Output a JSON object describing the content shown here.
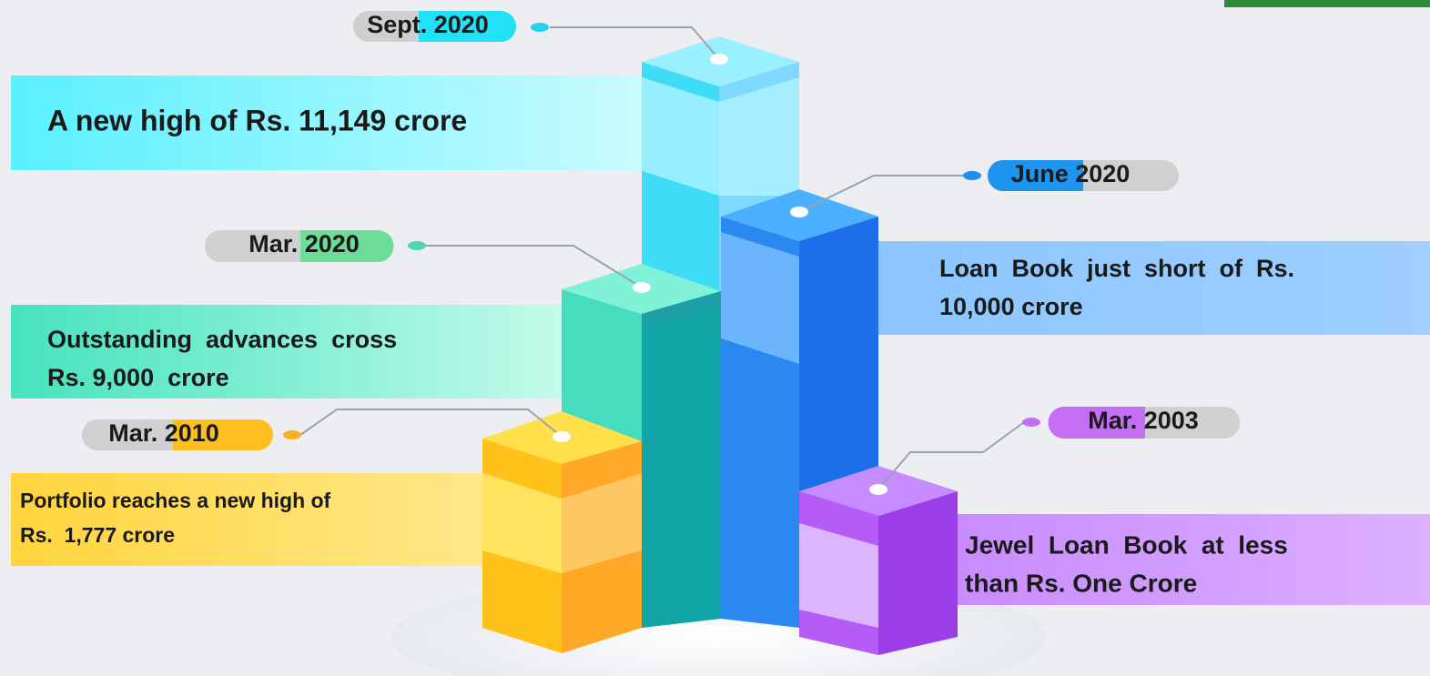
{
  "milestones": [
    {
      "date": "Sept. 2020",
      "lines": [
        "A new high of Rs. 11,149 crore"
      ]
    },
    {
      "date": "June 2020",
      "lines": [
        "Loan  Book  just  short  of  Rs.",
        "10,000 crore"
      ]
    },
    {
      "date": "Mar. 2020",
      "lines": [
        "Outstanding  advances  cross",
        "Rs. 9,000  crore"
      ]
    },
    {
      "date": "Mar. 2010",
      "lines": [
        "Portfolio reaches a new high of",
        "Rs.  1,777 crore"
      ]
    },
    {
      "date": "Mar. 2003",
      "lines": [
        "Jewel  Loan  Book  at  less",
        "than Rs. One Crore"
      ]
    }
  ]
}
